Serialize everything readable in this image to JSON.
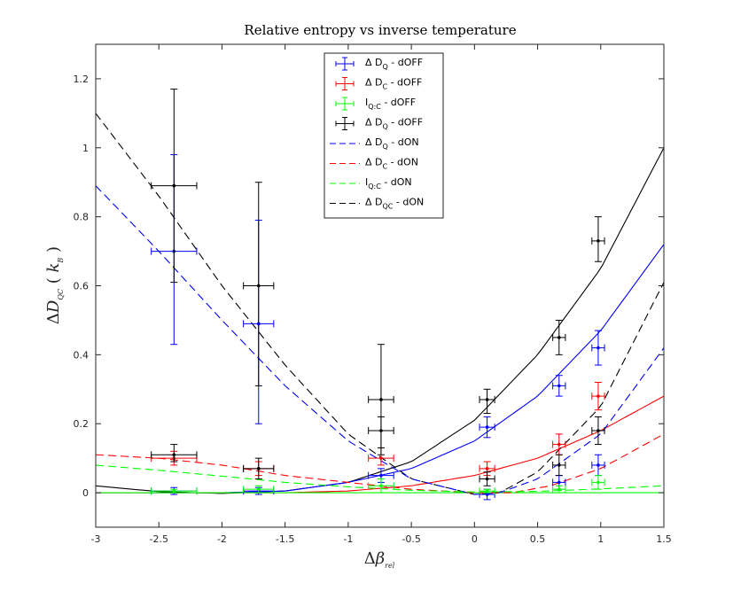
{
  "chart_data": {
    "type": "scatter",
    "title": "Relative entropy vs inverse temperature",
    "xlabel": "Δβ_rel",
    "ylabel": "ΔD_QC ( k_B )",
    "xlim": [
      -3,
      1.5
    ],
    "ylim": [
      -0.1,
      1.3
    ],
    "xticks": [
      -3,
      -2.5,
      -2,
      -1.5,
      -1,
      -0.5,
      0,
      0.5,
      1,
      1.5
    ],
    "xtick_labels": [
      "-3",
      "-2.5",
      "-2",
      "-1.5",
      "-1",
      "-0.5",
      "0",
      "0.5",
      "1",
      "1.5"
    ],
    "yticks": [
      0,
      0.2,
      0.4,
      0.6,
      0.8,
      1,
      1.2
    ],
    "ytick_labels": [
      "0",
      "0.2",
      "0.4",
      "0.6",
      "0.8",
      "1",
      "1.2"
    ],
    "legend_placement": "top-center",
    "legend": [
      {
        "pre": "Δ D",
        "sub": "Q",
        "post": " - dOFF",
        "color": "#0000ff",
        "style": "errorbar"
      },
      {
        "pre": "Δ D",
        "sub": "C",
        "post": " - dOFF",
        "color": "#ff0000",
        "style": "errorbar"
      },
      {
        "pre": "I",
        "sub": "Q:C",
        "post": " - dOFF",
        "color": "#00ff00",
        "style": "errorbar"
      },
      {
        "pre": "Δ D",
        "sub": "Q",
        "post": " - dOFF",
        "color": "#000000",
        "style": "errorbar"
      },
      {
        "pre": "Δ D",
        "sub": "Q",
        "post": " - dON",
        "color": "#0000ff",
        "style": "dashed"
      },
      {
        "pre": "Δ D",
        "sub": "C",
        "post": " - dON",
        "color": "#ff0000",
        "style": "dashed"
      },
      {
        "pre": "I",
        "sub": "Q:C",
        "post": " - dON",
        "color": "#00ff00",
        "style": "dashed"
      },
      {
        "pre": "Δ D",
        "sub": "QC",
        "post": " - dON",
        "color": "#000000",
        "style": "dashed"
      }
    ],
    "errorbar_series": [
      {
        "color": "#0000ff",
        "points": [
          {
            "x": -2.38,
            "y": 0.7,
            "xerr": 0.18,
            "ylo": 0.43,
            "yhi": 0.98
          },
          {
            "x": -1.71,
            "y": 0.49,
            "xerr": 0.12,
            "ylo": 0.2,
            "yhi": 0.79
          },
          {
            "x": -0.74,
            "y": 0.05,
            "xerr": 0.1,
            "ylo": 0.03,
            "yhi": 0.07
          },
          {
            "x": 0.1,
            "y": 0.19,
            "xerr": 0.06,
            "ylo": 0.16,
            "yhi": 0.22
          },
          {
            "x": 0.67,
            "y": 0.31,
            "xerr": 0.05,
            "ylo": 0.28,
            "yhi": 0.34
          },
          {
            "x": 0.98,
            "y": 0.42,
            "xerr": 0.05,
            "ylo": 0.37,
            "yhi": 0.47
          },
          {
            "x": -2.38,
            "y": 0.005,
            "xerr": 0.18,
            "ylo": -0.005,
            "yhi": 0.015
          },
          {
            "x": -1.71,
            "y": 0.005,
            "xerr": 0.12,
            "ylo": -0.005,
            "yhi": 0.015
          },
          {
            "x": 0.1,
            "y": -0.005,
            "xerr": 0.06,
            "ylo": -0.02,
            "yhi": 0.01
          },
          {
            "x": 0.67,
            "y": 0.03,
            "xerr": 0.05,
            "ylo": 0.01,
            "yhi": 0.05
          },
          {
            "x": 0.98,
            "y": 0.08,
            "xerr": 0.05,
            "ylo": 0.05,
            "yhi": 0.11
          }
        ]
      },
      {
        "color": "#ff0000",
        "points": [
          {
            "x": -2.38,
            "y": 0.1,
            "xerr": 0.18,
            "ylo": 0.08,
            "yhi": 0.12
          },
          {
            "x": -1.71,
            "y": 0.07,
            "xerr": 0.12,
            "ylo": 0.05,
            "yhi": 0.09
          },
          {
            "x": -0.74,
            "y": 0.1,
            "xerr": 0.1,
            "ylo": 0.08,
            "yhi": 0.13
          },
          {
            "x": 0.1,
            "y": 0.07,
            "xerr": 0.06,
            "ylo": 0.05,
            "yhi": 0.09
          },
          {
            "x": 0.67,
            "y": 0.14,
            "xerr": 0.05,
            "ylo": 0.11,
            "yhi": 0.17
          },
          {
            "x": 0.98,
            "y": 0.28,
            "xerr": 0.05,
            "ylo": 0.24,
            "yhi": 0.32
          }
        ]
      },
      {
        "color": "#00ff00",
        "points": [
          {
            "x": -2.38,
            "y": 0.005,
            "xerr": 0.18,
            "ylo": 0.0,
            "yhi": 0.01
          },
          {
            "x": -1.71,
            "y": 0.01,
            "xerr": 0.12,
            "ylo": 0.0,
            "yhi": 0.02
          },
          {
            "x": -0.74,
            "y": 0.02,
            "xerr": 0.1,
            "ylo": 0.0,
            "yhi": 0.04
          },
          {
            "x": 0.1,
            "y": 0.005,
            "xerr": 0.06,
            "ylo": 0.0,
            "yhi": 0.01
          },
          {
            "x": 0.67,
            "y": 0.01,
            "xerr": 0.05,
            "ylo": 0.0,
            "yhi": 0.02
          },
          {
            "x": 0.98,
            "y": 0.03,
            "xerr": 0.05,
            "ylo": 0.01,
            "yhi": 0.05
          }
        ]
      },
      {
        "color": "#000000",
        "points": [
          {
            "x": -2.38,
            "y": 0.89,
            "xerr": 0.18,
            "ylo": 0.61,
            "yhi": 1.17
          },
          {
            "x": -1.71,
            "y": 0.6,
            "xerr": 0.12,
            "ylo": 0.31,
            "yhi": 0.9
          },
          {
            "x": -0.74,
            "y": 0.27,
            "xerr": 0.1,
            "ylo": 0.11,
            "yhi": 0.43
          },
          {
            "x": -0.74,
            "y": 0.18,
            "xerr": 0.1,
            "ylo": 0.13,
            "yhi": 0.22
          },
          {
            "x": 0.1,
            "y": 0.27,
            "xerr": 0.06,
            "ylo": 0.23,
            "yhi": 0.3
          },
          {
            "x": 0.67,
            "y": 0.45,
            "xerr": 0.05,
            "ylo": 0.4,
            "yhi": 0.5
          },
          {
            "x": 0.98,
            "y": 0.73,
            "xerr": 0.05,
            "ylo": 0.67,
            "yhi": 0.8
          },
          {
            "x": -2.38,
            "y": 0.11,
            "xerr": 0.18,
            "ylo": 0.09,
            "yhi": 0.14
          },
          {
            "x": -1.71,
            "y": 0.07,
            "xerr": 0.12,
            "ylo": 0.04,
            "yhi": 0.1
          },
          {
            "x": 0.1,
            "y": 0.04,
            "xerr": 0.06,
            "ylo": 0.02,
            "yhi": 0.06
          },
          {
            "x": 0.67,
            "y": 0.08,
            "xerr": 0.05,
            "ylo": 0.05,
            "yhi": 0.11
          },
          {
            "x": 0.98,
            "y": 0.18,
            "xerr": 0.05,
            "ylo": 0.14,
            "yhi": 0.22
          }
        ]
      }
    ],
    "fit_curves": [
      {
        "color": "#000000",
        "style": "solid",
        "x": [
          -3,
          -2.5,
          -2,
          -1.5,
          -1,
          -0.5,
          0,
          0.5,
          1,
          1.5
        ],
        "y": [
          0.02,
          0.003,
          -0.002,
          0.005,
          0.03,
          0.09,
          0.21,
          0.4,
          0.65,
          1.0
        ]
      },
      {
        "color": "#0000ff",
        "style": "solid",
        "x": [
          -3,
          -2.5,
          -2,
          -1.5,
          -1,
          -0.5,
          0,
          0.5,
          1,
          1.5
        ],
        "y": [
          0.0,
          0.0,
          0.0,
          0.005,
          0.03,
          0.07,
          0.15,
          0.28,
          0.47,
          0.72
        ]
      },
      {
        "color": "#ff0000",
        "style": "solid",
        "x": [
          -3,
          -2.5,
          -2,
          -1.5,
          -1,
          -0.5,
          0,
          0.5,
          1,
          1.5
        ],
        "y": [
          0.0,
          0.0,
          0.0,
          0.0,
          0.005,
          0.02,
          0.05,
          0.1,
          0.18,
          0.28
        ]
      },
      {
        "color": "#00ff00",
        "style": "solid",
        "x": [
          -3,
          1.5
        ],
        "y": [
          0.0,
          0.0
        ]
      },
      {
        "color": "#000000",
        "style": "dashed",
        "x": [
          -3,
          -2.5,
          -2,
          -1.5,
          -1,
          -0.5,
          0,
          0.2,
          0.5,
          1,
          1.5
        ],
        "y": [
          1.1,
          0.86,
          0.6,
          0.37,
          0.17,
          0.04,
          -0.005,
          0.0,
          0.06,
          0.25,
          0.61
        ]
      },
      {
        "color": "#0000ff",
        "style": "dashed",
        "x": [
          -3,
          -2.5,
          -2,
          -1.5,
          -1,
          -0.5,
          0,
          0.2,
          0.5,
          1,
          1.5
        ],
        "y": [
          0.89,
          0.7,
          0.5,
          0.31,
          0.15,
          0.04,
          -0.005,
          0.0,
          0.04,
          0.17,
          0.42
        ]
      },
      {
        "color": "#ff0000",
        "style": "dashed",
        "x": [
          -3,
          -2.5,
          -2,
          -1.5,
          -1,
          -0.5,
          0,
          0.3,
          0.6,
          1,
          1.5
        ],
        "y": [
          0.11,
          0.1,
          0.08,
          0.05,
          0.03,
          0.01,
          0.0,
          0.0,
          0.02,
          0.07,
          0.17
        ]
      },
      {
        "color": "#00ff00",
        "style": "dashed",
        "x": [
          -3,
          -2.5,
          -2,
          -1.5,
          -1,
          -0.5,
          0,
          0.5,
          1,
          1.5
        ],
        "y": [
          0.08,
          0.065,
          0.048,
          0.03,
          0.017,
          0.007,
          0.002,
          0.004,
          0.011,
          0.02
        ]
      }
    ]
  }
}
